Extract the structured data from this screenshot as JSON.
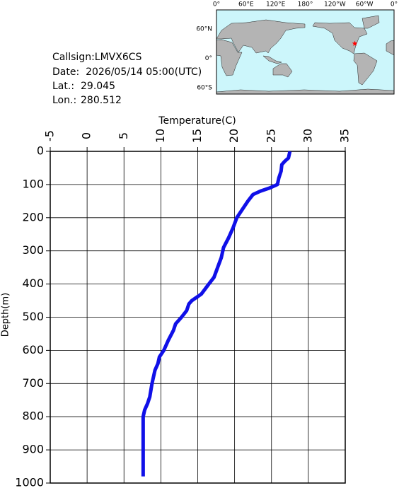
{
  "chart_data": {
    "type": "line",
    "title": "Temperature(C)",
    "depth_label": "Depth(m)",
    "x": [
      0,
      20,
      30,
      40,
      60,
      80,
      100,
      110,
      120,
      130,
      150,
      170,
      200,
      230,
      260,
      290,
      320,
      350,
      380,
      400,
      430,
      450,
      460,
      480,
      500,
      520,
      540,
      570,
      600,
      620,
      640,
      660,
      700,
      740,
      760,
      780,
      800,
      850,
      900,
      980
    ],
    "values": [
      27.5,
      27.3,
      26.8,
      26.4,
      26.3,
      26.0,
      25.8,
      24.8,
      23.5,
      22.5,
      21.8,
      21.2,
      20.3,
      19.8,
      19.2,
      18.5,
      18.2,
      17.7,
      17.2,
      16.5,
      15.5,
      14.2,
      13.8,
      13.5,
      12.8,
      12.0,
      11.7,
      11.0,
      10.4,
      9.8,
      9.6,
      9.2,
      8.8,
      8.5,
      8.2,
      7.8,
      7.6,
      7.6,
      7.6,
      7.6
    ],
    "color": "#1010e8",
    "ylim": [
      -5,
      35
    ],
    "yticks": [
      -5,
      0,
      5,
      10,
      15,
      20,
      25,
      30,
      35
    ],
    "xlim": [
      0,
      1000
    ],
    "xticks": [
      0,
      100,
      200,
      300,
      400,
      500,
      600,
      700,
      800,
      900,
      1000
    ],
    "grid": true
  },
  "info": {
    "callsign": "Callsign:LMVX6CS",
    "date": "Date:  2026/05/14 05:00(UTC)",
    "lat_label": "Lat.:",
    "lat": 29.045,
    "lon_label": "Lon.:",
    "lon": 280.512
  },
  "map": {
    "lon_ticks": [
      "0°",
      "60°E",
      "120°E",
      "180°",
      "120°W",
      "60°W",
      "0°"
    ],
    "lat_ticks": [
      "60°N",
      "0°",
      "60°S"
    ],
    "marker_color": "#ff0000"
  }
}
